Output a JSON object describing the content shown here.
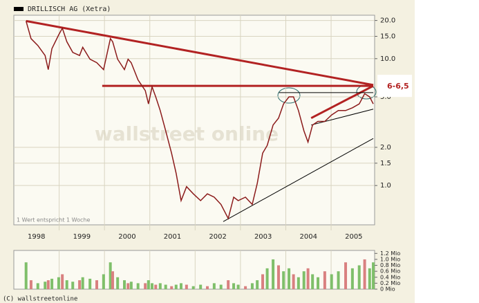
{
  "chart_data": [
    {
      "type": "line",
      "watermark": "wallstreet online",
      "note": "1 Wert entspricht 1 Woche",
      "x": [
        1998.27,
        1998.38,
        1998.53,
        1998.69,
        1998.76,
        1998.84,
        1998.99,
        1999.07,
        1999.17,
        1999.3,
        1999.45,
        1999.52,
        1999.68,
        1999.83,
        1999.98,
        2000.13,
        2000.18,
        2000.29,
        2000.44,
        2000.52,
        2000.59,
        2000.74,
        2000.9,
        2000.97,
        2001.05,
        2001.13,
        2001.23,
        2001.35,
        2001.48,
        2001.58,
        2001.69,
        2001.81,
        2001.96,
        2002.12,
        2002.27,
        2002.42,
        2002.57,
        2002.73,
        2002.85,
        2002.95,
        2003.11,
        2003.26,
        2003.37,
        2003.49,
        2003.59,
        2003.72,
        2003.84,
        2003.95,
        2004.07,
        2004.17,
        2004.28,
        2004.4,
        2004.49,
        2004.59,
        2004.71,
        2004.86,
        2005.01,
        2005.16,
        2005.32,
        2005.47,
        2005.62,
        2005.74,
        2005.85,
        2005.93
      ],
      "series": [
        {
          "name": "DRILLISCH AG (Xetra)",
          "color": "#8b1a1a",
          "values": [
            19.8,
            14.4,
            12.7,
            10.6,
            8.2,
            12.0,
            15.4,
            17.4,
            13.6,
            11.2,
            10.6,
            12.3,
            9.9,
            9.3,
            8.2,
            14.4,
            13.6,
            9.9,
            8.2,
            9.9,
            9.3,
            6.8,
            5.6,
            4.4,
            6.0,
            5.0,
            3.9,
            2.7,
            1.8,
            1.25,
            0.76,
            0.98,
            0.86,
            0.76,
            0.86,
            0.81,
            0.71,
            0.55,
            0.81,
            0.76,
            0.81,
            0.71,
            1.04,
            1.8,
            2.07,
            3.0,
            3.4,
            4.4,
            5.0,
            5.0,
            3.9,
            2.7,
            2.2,
            3.0,
            3.2,
            3.2,
            3.6,
            3.9,
            3.9,
            4.1,
            4.4,
            5.3,
            5.0,
            4.4
          ]
        }
      ],
      "xlim": [
        1998,
        2005.96
      ],
      "xticks": [
        {
          "value": 1998.5,
          "label": "1998"
        },
        {
          "value": 1999.5,
          "label": "1999"
        },
        {
          "value": 2000.5,
          "label": "2000"
        },
        {
          "value": 2001.5,
          "label": "2001"
        },
        {
          "value": 2002.5,
          "label": "2002"
        },
        {
          "value": 2003.5,
          "label": "2003"
        },
        {
          "value": 2004.5,
          "label": "2004"
        },
        {
          "value": 2005.5,
          "label": "2005"
        }
      ],
      "ylim": [
        0.49,
        22
      ],
      "yticks": [
        {
          "value": 20,
          "label": "20.0"
        },
        {
          "value": 15,
          "label": "15.0"
        },
        {
          "value": 10,
          "label": "10.0"
        },
        {
          "value": 5,
          "label": "5.0"
        },
        {
          "value": 2,
          "label": "2.0"
        },
        {
          "value": 1.5,
          "label": "1.5"
        },
        {
          "value": 1,
          "label": "1.0"
        }
      ],
      "log_y": true,
      "grid": true,
      "trendlines": [
        {
          "color": "#b22222",
          "x": [
            1998.27,
            2005.93
          ],
          "y": [
            19.8,
            6.2
          ]
        },
        {
          "color": "#b22222",
          "x": [
            1999.95,
            2005.93
          ],
          "y": [
            6.1,
            6.1
          ]
        },
        {
          "color": "#b22222",
          "x": [
            2004.56,
            2005.93
          ],
          "y": [
            3.4,
            6.1
          ]
        },
        {
          "color": "#000000",
          "x": [
            2003.85,
            2005.93
          ],
          "y": [
            5.4,
            5.4
          ]
        },
        {
          "color": "#000000",
          "x": [
            2002.62,
            2005.93
          ],
          "y": [
            0.52,
            2.35
          ]
        },
        {
          "color": "#000000",
          "x": [
            2004.56,
            2005.93
          ],
          "y": [
            3.0,
            4.0
          ]
        }
      ],
      "annotation": {
        "text": "6-6,5",
        "x": 2005.93,
        "y": 6.1
      }
    },
    {
      "type": "bar",
      "color": "#7fbf6a",
      "copyright": "(C) wallstreetonline",
      "x": [
        1998.27,
        1998.38,
        1998.53,
        1998.69,
        1998.76,
        1998.84,
        1998.99,
        1999.07,
        1999.17,
        1999.3,
        1999.45,
        1999.52,
        1999.68,
        1999.83,
        1999.98,
        2000.13,
        2000.18,
        2000.29,
        2000.44,
        2000.52,
        2000.59,
        2000.74,
        2000.9,
        2000.97,
        2001.05,
        2001.13,
        2001.23,
        2001.35,
        2001.48,
        2001.58,
        2001.69,
        2001.81,
        2001.96,
        2002.12,
        2002.27,
        2002.42,
        2002.57,
        2002.73,
        2002.85,
        2002.95,
        2003.11,
        2003.26,
        2003.37,
        2003.49,
        2003.59,
        2003.72,
        2003.84,
        2003.95,
        2004.07,
        2004.17,
        2004.28,
        2004.4,
        2004.49,
        2004.59,
        2004.71,
        2004.86,
        2005.01,
        2005.16,
        2005.32,
        2005.47,
        2005.62,
        2005.74,
        2005.85,
        2005.93
      ],
      "values": [
        0.9,
        0.3,
        0.2,
        0.25,
        0.3,
        0.35,
        0.4,
        0.5,
        0.3,
        0.25,
        0.3,
        0.4,
        0.35,
        0.3,
        0.5,
        0.9,
        0.6,
        0.4,
        0.3,
        0.2,
        0.25,
        0.2,
        0.2,
        0.3,
        0.2,
        0.15,
        0.2,
        0.15,
        0.1,
        0.15,
        0.2,
        0.15,
        0.1,
        0.15,
        0.1,
        0.2,
        0.15,
        0.3,
        0.2,
        0.15,
        0.1,
        0.2,
        0.3,
        0.5,
        0.7,
        1.0,
        0.8,
        0.6,
        0.7,
        0.5,
        0.4,
        0.6,
        0.7,
        0.5,
        0.4,
        0.6,
        0.5,
        0.6,
        0.9,
        0.7,
        0.8,
        1.0,
        0.7,
        0.9
      ],
      "xlim": [
        1998,
        2005.96
      ],
      "ylim": [
        0,
        1.3
      ],
      "yticks": [
        {
          "value": 1.2,
          "label": "1.2 Mio"
        },
        {
          "value": 1.0,
          "label": "1.0 Mio"
        },
        {
          "value": 0.8,
          "label": "0.8 Mio"
        },
        {
          "value": 0.6,
          "label": "0.6 Mio"
        },
        {
          "value": 0.4,
          "label": "0.4 Mio"
        },
        {
          "value": 0.2,
          "label": "0.2 Mio"
        },
        {
          "value": 0,
          "label": "0 Mio"
        }
      ],
      "grid": true
    }
  ]
}
